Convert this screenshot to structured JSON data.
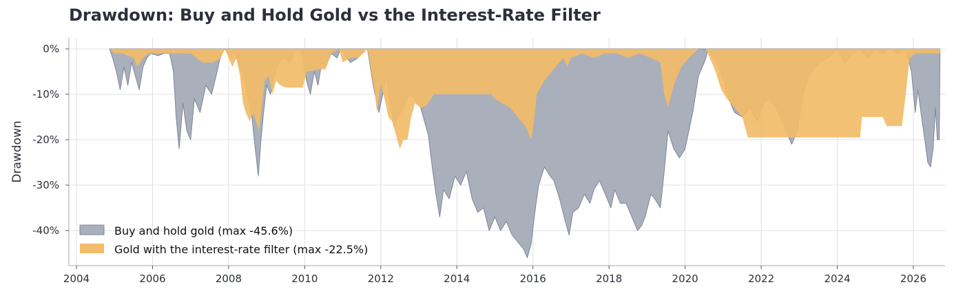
{
  "chart_data": {
    "type": "area",
    "title": "Drawdown: Buy and Hold Gold vs the Interest-Rate Filter",
    "xlabel": "",
    "ylabel": "Drawdown",
    "xlim": [
      2003.8,
      2026.9
    ],
    "ylim": [
      -48,
      2.5
    ],
    "x_ticks": [
      2004,
      2006,
      2008,
      2010,
      2012,
      2014,
      2016,
      2018,
      2020,
      2022,
      2024,
      2026
    ],
    "x_tick_labels": [
      "2004",
      "2006",
      "2008",
      "2010",
      "2012",
      "2014",
      "2016",
      "2018",
      "2020",
      "2022",
      "2024",
      "2026"
    ],
    "y_ticks": [
      0,
      -10,
      -20,
      -30,
      -40
    ],
    "y_tick_labels": [
      "0%",
      "-10%",
      "-20%",
      "-30%",
      "-40%"
    ],
    "grid": true,
    "legend_position": "lower-left",
    "colors": {
      "buy_hold": "#a9afbb",
      "buy_hold_edge": "#7e8596",
      "filter": "#f2bc68",
      "grid": "#e0e0e0",
      "axis": "#b8b8b8"
    },
    "series": [
      {
        "name": "Buy and hold gold (max -45.6%)",
        "color": "#a9afbb",
        "points": [
          [
            2004.87,
            0
          ],
          [
            2004.95,
            -2
          ],
          [
            2005.05,
            -5
          ],
          [
            2005.15,
            -9
          ],
          [
            2005.25,
            -4
          ],
          [
            2005.35,
            -8
          ],
          [
            2005.45,
            -3
          ],
          [
            2005.55,
            -6
          ],
          [
            2005.65,
            -9
          ],
          [
            2005.75,
            -4
          ],
          [
            2005.85,
            -2
          ],
          [
            2005.95,
            -1
          ],
          [
            2006.15,
            -1.5
          ],
          [
            2006.3,
            -1
          ],
          [
            2006.45,
            -1
          ],
          [
            2006.55,
            -5
          ],
          [
            2006.62,
            -15
          ],
          [
            2006.7,
            -22
          ],
          [
            2006.8,
            -12
          ],
          [
            2006.9,
            -18
          ],
          [
            2007.0,
            -20
          ],
          [
            2007.1,
            -11
          ],
          [
            2007.25,
            -14
          ],
          [
            2007.4,
            -8
          ],
          [
            2007.55,
            -10
          ],
          [
            2007.7,
            -5
          ],
          [
            2007.8,
            -1
          ],
          [
            2007.9,
            0
          ],
          [
            2008.05,
            -2
          ],
          [
            2008.15,
            -0.5
          ],
          [
            2008.25,
            -3
          ],
          [
            2008.4,
            -6
          ],
          [
            2008.5,
            -10
          ],
          [
            2008.6,
            -14
          ],
          [
            2008.7,
            -22
          ],
          [
            2008.78,
            -28
          ],
          [
            2008.85,
            -20
          ],
          [
            2008.92,
            -14
          ],
          [
            2009.0,
            -8
          ],
          [
            2009.1,
            -10
          ],
          [
            2009.2,
            -6
          ],
          [
            2009.3,
            -3
          ],
          [
            2009.45,
            -2
          ],
          [
            2009.6,
            -3
          ],
          [
            2009.75,
            -0.5
          ],
          [
            2009.9,
            0
          ],
          [
            2010.05,
            -7
          ],
          [
            2010.15,
            -10
          ],
          [
            2010.25,
            -5
          ],
          [
            2010.35,
            -8
          ],
          [
            2010.45,
            -3
          ],
          [
            2010.55,
            -4
          ],
          [
            2010.7,
            -1
          ],
          [
            2010.85,
            -2
          ],
          [
            2010.95,
            0
          ],
          [
            2011.2,
            -3
          ],
          [
            2011.4,
            -2
          ],
          [
            2011.55,
            0
          ],
          [
            2011.65,
            0
          ],
          [
            2011.8,
            -8
          ],
          [
            2011.95,
            -14
          ],
          [
            2012.05,
            -10
          ],
          [
            2012.15,
            -6
          ],
          [
            2012.25,
            -12
          ],
          [
            2012.35,
            -17
          ],
          [
            2012.45,
            -15
          ],
          [
            2012.6,
            -13
          ],
          [
            2012.75,
            -10
          ],
          [
            2012.9,
            -11
          ],
          [
            2013.05,
            -13
          ],
          [
            2013.15,
            -16
          ],
          [
            2013.25,
            -19
          ],
          [
            2013.35,
            -26
          ],
          [
            2013.45,
            -32
          ],
          [
            2013.55,
            -37
          ],
          [
            2013.65,
            -31
          ],
          [
            2013.8,
            -33
          ],
          [
            2013.95,
            -28
          ],
          [
            2014.1,
            -30
          ],
          [
            2014.25,
            -27
          ],
          [
            2014.4,
            -33
          ],
          [
            2014.55,
            -36
          ],
          [
            2014.7,
            -35
          ],
          [
            2014.85,
            -40
          ],
          [
            2015.0,
            -37
          ],
          [
            2015.15,
            -40
          ],
          [
            2015.3,
            -38
          ],
          [
            2015.45,
            -41
          ],
          [
            2015.55,
            -42
          ],
          [
            2015.65,
            -43
          ],
          [
            2015.75,
            -44
          ],
          [
            2015.85,
            -46
          ],
          [
            2015.95,
            -43
          ],
          [
            2016.05,
            -36
          ],
          [
            2016.15,
            -30
          ],
          [
            2016.3,
            -26
          ],
          [
            2016.45,
            -28
          ],
          [
            2016.55,
            -29
          ],
          [
            2016.7,
            -33
          ],
          [
            2016.85,
            -38
          ],
          [
            2016.95,
            -41
          ],
          [
            2017.05,
            -36
          ],
          [
            2017.2,
            -35
          ],
          [
            2017.35,
            -32
          ],
          [
            2017.5,
            -34
          ],
          [
            2017.6,
            -31
          ],
          [
            2017.75,
            -29
          ],
          [
            2017.9,
            -32
          ],
          [
            2018.05,
            -35
          ],
          [
            2018.15,
            -31
          ],
          [
            2018.3,
            -34
          ],
          [
            2018.45,
            -34
          ],
          [
            2018.6,
            -37
          ],
          [
            2018.75,
            -40
          ],
          [
            2018.85,
            -39
          ],
          [
            2018.95,
            -37
          ],
          [
            2019.1,
            -32
          ],
          [
            2019.2,
            -33
          ],
          [
            2019.35,
            -35
          ],
          [
            2019.45,
            -27
          ],
          [
            2019.55,
            -18
          ],
          [
            2019.7,
            -22
          ],
          [
            2019.85,
            -24
          ],
          [
            2020.0,
            -22
          ],
          [
            2020.2,
            -14
          ],
          [
            2020.35,
            -6
          ],
          [
            2020.55,
            -2
          ],
          [
            2020.6,
            0
          ],
          [
            2020.75,
            -2
          ],
          [
            2020.9,
            -4
          ],
          [
            2021.05,
            -8
          ],
          [
            2021.15,
            -11
          ],
          [
            2021.3,
            -14
          ],
          [
            2021.5,
            -15
          ],
          [
            2021.7,
            -13
          ],
          [
            2021.9,
            -16
          ],
          [
            2022.05,
            -12
          ],
          [
            2022.2,
            -11
          ],
          [
            2022.4,
            -13
          ],
          [
            2022.55,
            -16
          ],
          [
            2022.7,
            -19
          ],
          [
            2022.8,
            -21
          ],
          [
            2022.95,
            -18
          ],
          [
            2023.1,
            -10
          ],
          [
            2023.25,
            -6
          ],
          [
            2023.4,
            -4
          ],
          [
            2023.55,
            -3
          ],
          [
            2023.75,
            -2
          ],
          [
            2024.0,
            0
          ],
          [
            2024.2,
            -3
          ],
          [
            2024.4,
            -1
          ],
          [
            2024.6,
            0
          ],
          [
            2024.8,
            -2
          ],
          [
            2025.0,
            0
          ],
          [
            2025.2,
            -1
          ],
          [
            2025.4,
            0
          ],
          [
            2025.6,
            -1
          ],
          [
            2025.8,
            0
          ],
          [
            2025.95,
            -5
          ],
          [
            2026.05,
            -14
          ],
          [
            2026.12,
            -9
          ],
          [
            2026.2,
            -14
          ],
          [
            2026.3,
            -20
          ],
          [
            2026.38,
            -25
          ],
          [
            2026.45,
            -26
          ],
          [
            2026.52,
            -22
          ],
          [
            2026.58,
            -13
          ],
          [
            2026.63,
            -20
          ],
          [
            2026.68,
            -20
          ],
          [
            2026.7,
            0
          ]
        ]
      },
      {
        "name": "Gold with the interest-rate filter (max -22.5%)",
        "color": "#f2bc68",
        "points": [
          [
            2004.87,
            0
          ],
          [
            2005.0,
            -1
          ],
          [
            2005.2,
            -1
          ],
          [
            2005.5,
            -2
          ],
          [
            2005.6,
            -4
          ],
          [
            2005.75,
            -2
          ],
          [
            2005.9,
            -1
          ],
          [
            2006.2,
            -1
          ],
          [
            2006.45,
            -1
          ],
          [
            2006.55,
            -1
          ],
          [
            2007.0,
            -1
          ],
          [
            2007.3,
            -3
          ],
          [
            2007.6,
            -3
          ],
          [
            2007.8,
            -2
          ],
          [
            2007.9,
            0
          ],
          [
            2008.1,
            -4
          ],
          [
            2008.2,
            -2
          ],
          [
            2008.3,
            -6
          ],
          [
            2008.38,
            -12
          ],
          [
            2008.45,
            -14
          ],
          [
            2008.55,
            -16
          ],
          [
            2008.65,
            -14
          ],
          [
            2008.72,
            -16
          ],
          [
            2008.8,
            -18
          ],
          [
            2008.88,
            -12
          ],
          [
            2008.95,
            -7
          ],
          [
            2009.05,
            -6
          ],
          [
            2009.15,
            -10
          ],
          [
            2009.25,
            -7
          ],
          [
            2009.35,
            -8
          ],
          [
            2009.5,
            -8.5
          ],
          [
            2009.75,
            -8.5
          ],
          [
            2009.95,
            -8.5
          ],
          [
            2010.05,
            -5
          ],
          [
            2010.4,
            -4.5
          ],
          [
            2010.55,
            -4.5
          ],
          [
            2010.7,
            -1
          ],
          [
            2010.9,
            0
          ],
          [
            2011.0,
            -3
          ],
          [
            2011.2,
            -2
          ],
          [
            2011.4,
            -2
          ],
          [
            2011.55,
            -1
          ],
          [
            2011.65,
            0
          ],
          [
            2011.75,
            -5
          ],
          [
            2011.85,
            -10
          ],
          [
            2011.9,
            -14
          ],
          [
            2012.0,
            -8
          ],
          [
            2012.1,
            -11
          ],
          [
            2012.2,
            -15
          ],
          [
            2012.3,
            -16
          ],
          [
            2012.4,
            -19
          ],
          [
            2012.5,
            -22
          ],
          [
            2012.6,
            -20
          ],
          [
            2012.7,
            -20
          ],
          [
            2012.8,
            -15
          ],
          [
            2012.9,
            -12
          ],
          [
            2013.05,
            -13
          ],
          [
            2013.2,
            -12.5
          ],
          [
            2013.4,
            -10
          ],
          [
            2014.0,
            -10
          ],
          [
            2014.5,
            -10
          ],
          [
            2014.9,
            -10
          ],
          [
            2015.0,
            -11
          ],
          [
            2015.2,
            -12
          ],
          [
            2015.4,
            -13
          ],
          [
            2015.6,
            -15
          ],
          [
            2015.8,
            -17
          ],
          [
            2015.95,
            -20
          ],
          [
            2016.0,
            -18
          ],
          [
            2016.1,
            -10
          ],
          [
            2016.3,
            -7
          ],
          [
            2016.5,
            -5
          ],
          [
            2016.7,
            -3
          ],
          [
            2016.8,
            -2
          ],
          [
            2016.9,
            -4
          ],
          [
            2017.0,
            -2
          ],
          [
            2017.3,
            -1
          ],
          [
            2017.6,
            -2
          ],
          [
            2017.9,
            -1
          ],
          [
            2018.2,
            -1
          ],
          [
            2018.5,
            -2
          ],
          [
            2018.8,
            -1
          ],
          [
            2019.1,
            -2
          ],
          [
            2019.35,
            -3
          ],
          [
            2019.45,
            -10
          ],
          [
            2019.55,
            -13
          ],
          [
            2019.7,
            -8
          ],
          [
            2019.9,
            -4
          ],
          [
            2020.1,
            -2
          ],
          [
            2020.35,
            0
          ],
          [
            2020.55,
            0
          ],
          [
            2020.65,
            -2
          ],
          [
            2020.8,
            -5
          ],
          [
            2020.95,
            -9
          ],
          [
            2021.1,
            -11
          ],
          [
            2021.3,
            -13
          ],
          [
            2021.5,
            -15
          ],
          [
            2021.6,
            -18
          ],
          [
            2021.65,
            -19.5
          ],
          [
            2021.8,
            -19.5
          ],
          [
            2022.5,
            -19.5
          ],
          [
            2023.5,
            -19.5
          ],
          [
            2024.4,
            -19.5
          ],
          [
            2024.6,
            -19.5
          ],
          [
            2024.65,
            -15
          ],
          [
            2025.2,
            -15
          ],
          [
            2025.3,
            -17
          ],
          [
            2025.7,
            -17
          ],
          [
            2025.8,
            -10
          ],
          [
            2025.9,
            -2
          ],
          [
            2026.05,
            -1
          ],
          [
            2026.3,
            -1
          ],
          [
            2026.5,
            -1
          ],
          [
            2026.7,
            -1
          ],
          [
            2026.71,
            0
          ]
        ]
      }
    ]
  }
}
